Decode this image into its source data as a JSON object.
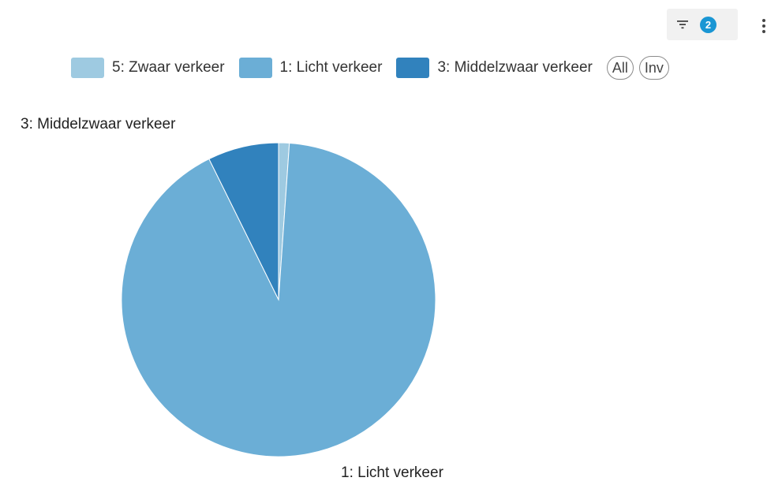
{
  "toolbar": {
    "filter_count": "2"
  },
  "legend": {
    "items": [
      {
        "label": "5: Zwaar verkeer",
        "color": "#9ecae1"
      },
      {
        "label": "1: Licht verkeer",
        "color": "#6baed6"
      },
      {
        "label": "3: Middelzwaar verkeer",
        "color": "#3182bd"
      }
    ],
    "all_label": "All",
    "inv_label": "Inv"
  },
  "chart_data": {
    "type": "pie",
    "categories": [
      "5: Zwaar verkeer",
      "1: Licht verkeer",
      "3: Middelzwaar verkeer"
    ],
    "values": [
      1.1,
      91.6,
      7.3
    ],
    "colors": [
      "#9ecae1",
      "#6baed6",
      "#3182bd"
    ],
    "slice_labels": {
      "middelzwaar": "3: Middelzwaar verkeer",
      "licht": "1: Licht verkeer"
    },
    "start_angle": 0,
    "direction": "clockwise"
  }
}
